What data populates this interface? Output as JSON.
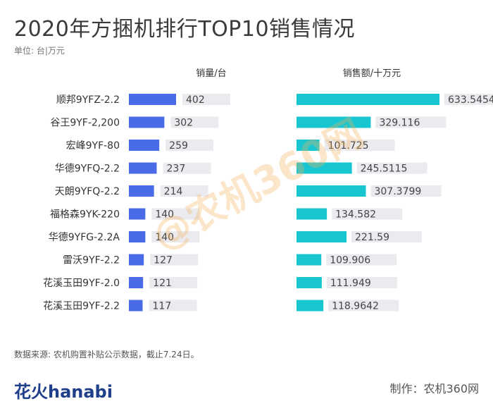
{
  "header": {
    "title": "2020年方捆机排行TOP10销售情况",
    "unit": "单位: 台|万元"
  },
  "footer": {
    "source": "数据来源: 农机购置补贴公示数据，截止7.24日。",
    "brand": "花火hanabi",
    "credit": "制作：农机360网"
  },
  "watermark": "@农机360网",
  "colors": {
    "volume": "#4a6be8",
    "sales": "#18c6d2",
    "track": "#ebebef"
  },
  "chart_data": {
    "type": "bar",
    "categories": [
      "顺邦9YFZ-2.2",
      "谷王9YF-2,200",
      "宏峰9YF-80",
      "华德9YFQ-2.2",
      "天朗9YFQ-2.2",
      "福格森9YK-220",
      "华德9YFG-2.2A",
      "雷沃9YF-2.2",
      "花溪玉田9YF-2.0",
      "花溪玉田9YF-2.2"
    ],
    "series": [
      {
        "name": "销量/台",
        "values": [
          402,
          302,
          259,
          237,
          214,
          140,
          140,
          127,
          121,
          117
        ],
        "labels": [
          "402",
          "302",
          "259",
          "237",
          "214",
          "140",
          "140",
          "127",
          "121",
          "117"
        ]
      },
      {
        "name": "销售额/十万元",
        "values": [
          633.5454,
          329.116,
          101.725,
          245.5115,
          307.3799,
          134.582,
          221.59,
          109.906,
          111.949,
          118.9642
        ],
        "labels": [
          "633.5454",
          "329.116",
          "101.725",
          "245.5115",
          "307.3799",
          "134.582",
          "221.59",
          "109.906",
          "111.949",
          "118.9642"
        ]
      }
    ]
  }
}
